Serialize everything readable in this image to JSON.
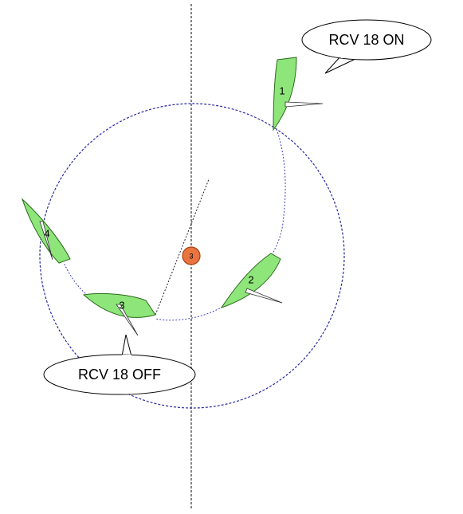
{
  "callouts": [
    {
      "text": "RCV 18 ON"
    },
    {
      "text": "RCV 18 OFF"
    }
  ],
  "boats": [
    {
      "label": "1"
    },
    {
      "label": "2"
    },
    {
      "label": "3"
    },
    {
      "label": "4"
    }
  ],
  "mark": {
    "label": "3"
  }
}
